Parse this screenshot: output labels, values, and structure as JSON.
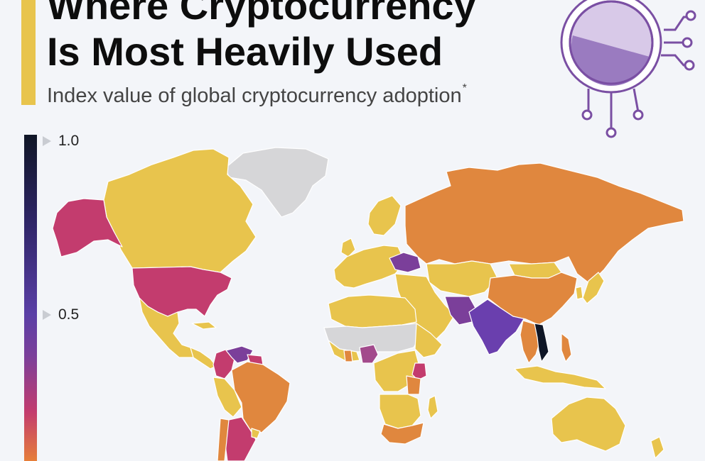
{
  "header": {
    "title_line1": "Where Cryptocurrency",
    "title_line2": "Is Most Heavily Used",
    "subtitle": "Index value of global cryptocurrency adoption",
    "subtitle_note_marker": "*"
  },
  "legend": {
    "scale": "continuous",
    "ticks": [
      {
        "label": "1.0",
        "value": 1.0
      },
      {
        "label": "0.5",
        "value": 0.5
      }
    ],
    "colors": [
      "#0f1626",
      "#30266a",
      "#5a3fa6",
      "#7b3f9a",
      "#c33c6e",
      "#e67e3a",
      "#e8c44d"
    ]
  },
  "map": {
    "type": "choropleth-world-map",
    "no_data_color": "#d6d6d8",
    "regions": [
      {
        "name": "Alaska",
        "color": "#c33c6e"
      },
      {
        "name": "Canada",
        "color": "#e8c44d"
      },
      {
        "name": "United States",
        "color": "#c33c6e"
      },
      {
        "name": "Mexico",
        "color": "#e8c44d"
      },
      {
        "name": "Greenland",
        "color": "#d6d6d8"
      },
      {
        "name": "Venezuela",
        "color": "#7b3f9a"
      },
      {
        "name": "Colombia",
        "color": "#c33c6e"
      },
      {
        "name": "Brazil",
        "color": "#e0873e"
      },
      {
        "name": "Argentina",
        "color": "#c33c6e"
      },
      {
        "name": "Russia",
        "color": "#e0873e"
      },
      {
        "name": "China",
        "color": "#e0873e"
      },
      {
        "name": "India",
        "color": "#6a3fae"
      },
      {
        "name": "Vietnam",
        "color": "#0f1626"
      },
      {
        "name": "Ukraine",
        "color": "#7b3f9a"
      },
      {
        "name": "Nigeria",
        "color": "#a24a8c"
      },
      {
        "name": "Kenya",
        "color": "#c33c6e"
      },
      {
        "name": "South Africa",
        "color": "#e0873e"
      },
      {
        "name": "Australia",
        "color": "#e8c44d"
      }
    ]
  },
  "logo": {
    "icon": "crypto-coin-circuit-icon",
    "color": "#7a4fa3"
  }
}
